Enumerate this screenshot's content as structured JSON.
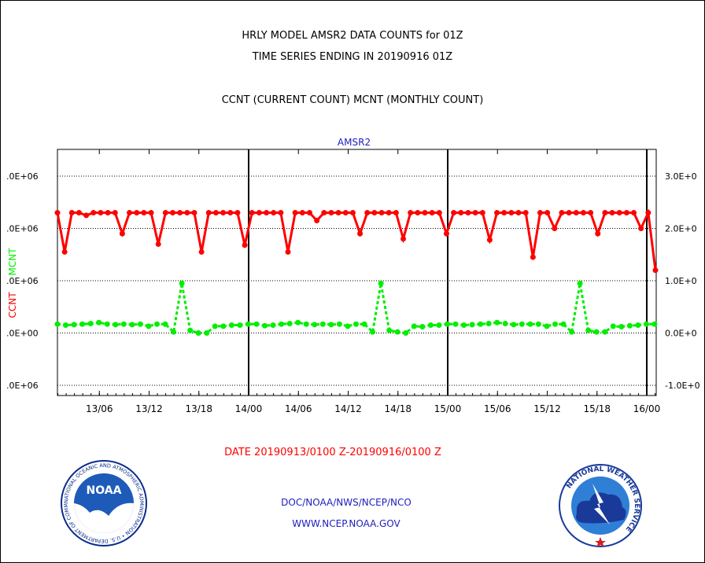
{
  "header": {
    "line1": "HRLY MODEL AMSR2 DATA COUNTS for 01Z",
    "line2": "TIME SERIES ENDING IN 20190916 01Z",
    "line3": "CCNT (CURRENT COUNT) MCNT (MONTHLY COUNT)"
  },
  "chart_data": {
    "type": "line",
    "title": "AMSR2",
    "xlabel": "DATE 20190913/0100 Z-20190916/0100 Z",
    "ylabel_left": "CCNT",
    "ylabel_right": "MCNT",
    "x_ticks": [
      "13/06",
      "13/12",
      "13/18",
      "14/00",
      "14/06",
      "14/12",
      "14/18",
      "15/00",
      "15/06",
      "15/12",
      "15/18",
      "16/00"
    ],
    "y_left_ticks": [
      ".0E+06",
      ".0E+06",
      ".0E+06",
      ".0E+00",
      ".0E+06"
    ],
    "y_right_ticks": [
      "3.0E+0",
      "2.0E+0",
      "1.0E+0",
      "0.0E+0",
      "-1.0E+0"
    ],
    "ylim": [
      -1.0,
      3.0
    ],
    "grid": true,
    "colors": {
      "ccnt": "#ff0000",
      "mcnt": "#00ee00"
    },
    "series": [
      {
        "name": "CCNT",
        "values": [
          2.3,
          1.55,
          2.3,
          2.3,
          2.25,
          2.3,
          2.3,
          2.3,
          2.3,
          1.9,
          2.3,
          2.3,
          2.3,
          2.3,
          1.7,
          2.3,
          2.3,
          2.3,
          2.3,
          2.3,
          1.55,
          2.3,
          2.3,
          2.3,
          2.3,
          2.3,
          1.68,
          2.3,
          2.3,
          2.3,
          2.3,
          2.3,
          1.55,
          2.3,
          2.3,
          2.3,
          2.15,
          2.3,
          2.3,
          2.3,
          2.3,
          2.3,
          1.9,
          2.3,
          2.3,
          2.3,
          2.3,
          2.3,
          1.8,
          2.3,
          2.3,
          2.3,
          2.3,
          2.3,
          1.9,
          2.3,
          2.3,
          2.3,
          2.3,
          2.3,
          1.78,
          2.3,
          2.3,
          2.3,
          2.3,
          2.3,
          1.45,
          2.3,
          2.3,
          2.0,
          2.3,
          2.3,
          2.3,
          2.3,
          2.3,
          1.9,
          2.3,
          2.3,
          2.3,
          2.3,
          2.3,
          2.0,
          2.3,
          1.2
        ]
      },
      {
        "name": "MCNT",
        "values": [
          0.17,
          0.15,
          0.16,
          0.17,
          0.18,
          0.2,
          0.17,
          0.16,
          0.17,
          0.16,
          0.17,
          0.13,
          0.17,
          0.17,
          0.02,
          0.95,
          0.05,
          0.0,
          0.0,
          0.13,
          0.13,
          0.15,
          0.15,
          0.17,
          0.17,
          0.14,
          0.15,
          0.17,
          0.18,
          0.2,
          0.17,
          0.16,
          0.17,
          0.16,
          0.17,
          0.13,
          0.17,
          0.17,
          0.02,
          0.95,
          0.05,
          0.02,
          0.0,
          0.13,
          0.12,
          0.15,
          0.15,
          0.17,
          0.17,
          0.15,
          0.16,
          0.17,
          0.18,
          0.2,
          0.18,
          0.16,
          0.17,
          0.17,
          0.17,
          0.13,
          0.17,
          0.17,
          0.02,
          0.95,
          0.05,
          0.02,
          0.02,
          0.13,
          0.12,
          0.14,
          0.15,
          0.17,
          0.17
        ]
      }
    ]
  },
  "footer": {
    "line1": "DOC/NOAA/NWS/NCEP/NCO",
    "line2": "WWW.NCEP.NOAA.GOV"
  },
  "logos": {
    "noaa_text": "NOAA",
    "noaa_ring": "NATIONAL OCEANIC AND ATMOSPHERIC ADMINISTRATION • U.S. DEPARTMENT OF COMMERCE •",
    "nws_ring": "NATIONAL WEATHER SERVICE"
  }
}
